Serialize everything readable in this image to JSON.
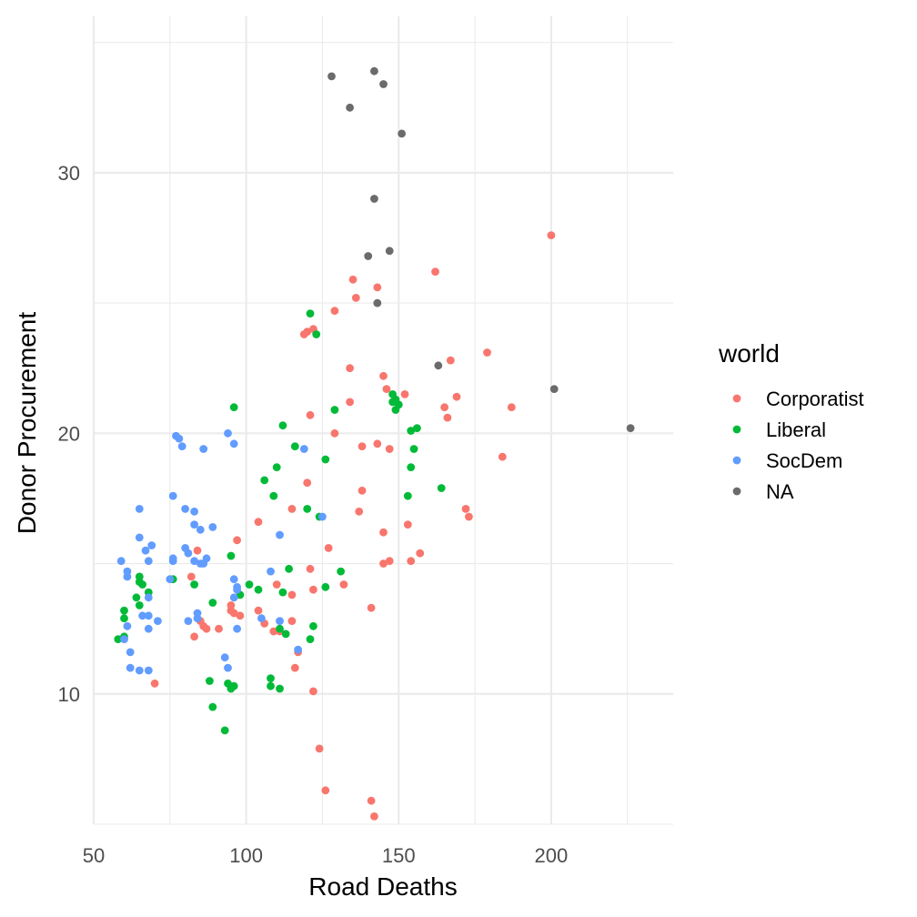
{
  "chart_data": {
    "type": "scatter",
    "xlabel": "Road Deaths",
    "ylabel": "Donor Procurement",
    "xlim": [
      50,
      240
    ],
    "ylim": [
      5,
      36
    ],
    "x_ticks": [
      50,
      100,
      150,
      200
    ],
    "y_ticks": [
      10,
      20,
      30
    ],
    "grid": true,
    "legend": {
      "title": "world",
      "position": "right"
    },
    "series": [
      {
        "name": "Corporatist",
        "color": "#F8766D",
        "points": [
          [
            200,
            27.6
          ],
          [
            162,
            26.2
          ],
          [
            135,
            25.9
          ],
          [
            143,
            25.6
          ],
          [
            136,
            25.2
          ],
          [
            129,
            24.7
          ],
          [
            122,
            24
          ],
          [
            120,
            23.9
          ],
          [
            119,
            23.8
          ],
          [
            179,
            23.1
          ],
          [
            167,
            22.8
          ],
          [
            134,
            22.5
          ],
          [
            145,
            22.2
          ],
          [
            146,
            21.7
          ],
          [
            152,
            21.5
          ],
          [
            169,
            21.4
          ],
          [
            134,
            21.2
          ],
          [
            187,
            21
          ],
          [
            165,
            21
          ],
          [
            166,
            20.6
          ],
          [
            121,
            20.7
          ],
          [
            129,
            20
          ],
          [
            143,
            19.6
          ],
          [
            138,
            19.5
          ],
          [
            147,
            19.4
          ],
          [
            184,
            19.1
          ],
          [
            120,
            18.1
          ],
          [
            138,
            17.8
          ],
          [
            115,
            17.1
          ],
          [
            172,
            17.1
          ],
          [
            137,
            17
          ],
          [
            173,
            16.8
          ],
          [
            104,
            16.6
          ],
          [
            153,
            16.5
          ],
          [
            145,
            16.2
          ],
          [
            97,
            15.9
          ],
          [
            127,
            15.6
          ],
          [
            84,
            15.5
          ],
          [
            157,
            15.4
          ],
          [
            154,
            15.1
          ],
          [
            147,
            15.1
          ],
          [
            145,
            15
          ],
          [
            121,
            14.8
          ],
          [
            82,
            14.5
          ],
          [
            110,
            14.2
          ],
          [
            132,
            14.2
          ],
          [
            122,
            14
          ],
          [
            115,
            13.8
          ],
          [
            95,
            13.4
          ],
          [
            141,
            13.3
          ],
          [
            104,
            13.2
          ],
          [
            95,
            13.2
          ],
          [
            96,
            13.1
          ],
          [
            98,
            13
          ],
          [
            85,
            12.8
          ],
          [
            115,
            12.8
          ],
          [
            106,
            12.7
          ],
          [
            86,
            12.6
          ],
          [
            87,
            12.5
          ],
          [
            91,
            12.5
          ],
          [
            109,
            12.4
          ],
          [
            111,
            12.4
          ],
          [
            83,
            12.2
          ],
          [
            117,
            11.6
          ],
          [
            116,
            11
          ],
          [
            70,
            10.4
          ],
          [
            122,
            10.1
          ],
          [
            124,
            7.9
          ],
          [
            126,
            6.3
          ],
          [
            141,
            5.9
          ],
          [
            142,
            5.3
          ]
        ]
      },
      {
        "name": "Liberal",
        "color": "#00BA38",
        "points": [
          [
            121,
            24.6
          ],
          [
            123,
            23.8
          ],
          [
            148,
            21.5
          ],
          [
            149,
            21.3
          ],
          [
            148,
            21.2
          ],
          [
            150,
            21.1
          ],
          [
            96,
            21
          ],
          [
            129,
            20.9
          ],
          [
            149,
            20.9
          ],
          [
            112,
            20.3
          ],
          [
            156,
            20.2
          ],
          [
            154,
            20.1
          ],
          [
            116,
            19.5
          ],
          [
            155,
            19.4
          ],
          [
            126,
            19
          ],
          [
            110,
            18.7
          ],
          [
            154,
            18.7
          ],
          [
            106,
            18.2
          ],
          [
            164,
            17.9
          ],
          [
            109,
            17.6
          ],
          [
            153,
            17.6
          ],
          [
            120,
            17.1
          ],
          [
            124,
            16.8
          ],
          [
            95,
            15.3
          ],
          [
            114,
            14.8
          ],
          [
            131,
            14.7
          ],
          [
            65,
            14.5
          ],
          [
            76,
            14.4
          ],
          [
            65,
            14.3
          ],
          [
            66,
            14.2
          ],
          [
            83,
            14.2
          ],
          [
            101,
            14.2
          ],
          [
            104,
            14
          ],
          [
            126,
            14.1
          ],
          [
            112,
            13.9
          ],
          [
            68,
            13.9
          ],
          [
            98,
            13.8
          ],
          [
            64,
            13.7
          ],
          [
            65,
            13.4
          ],
          [
            89,
            13.5
          ],
          [
            60,
            13.2
          ],
          [
            60,
            12.9
          ],
          [
            122,
            12.6
          ],
          [
            111,
            12.5
          ],
          [
            113,
            12.3
          ],
          [
            60,
            12.2
          ],
          [
            58,
            12.1
          ],
          [
            121,
            12.1
          ],
          [
            108,
            10.6
          ],
          [
            88,
            10.5
          ],
          [
            94,
            10.4
          ],
          [
            108,
            10.3
          ],
          [
            96,
            10.3
          ],
          [
            95,
            10.2
          ],
          [
            111,
            10.2
          ],
          [
            89,
            9.5
          ],
          [
            93,
            8.6
          ]
        ]
      },
      {
        "name": "SocDem",
        "color": "#619CFF",
        "points": [
          [
            77,
            19.9
          ],
          [
            78,
            19.8
          ],
          [
            94,
            20
          ],
          [
            79,
            19.5
          ],
          [
            96,
            19.6
          ],
          [
            86,
            19.4
          ],
          [
            119,
            19.4
          ],
          [
            65,
            17.1
          ],
          [
            76,
            17.6
          ],
          [
            80,
            17.1
          ],
          [
            83,
            17
          ],
          [
            125,
            16.8
          ],
          [
            83,
            16.5
          ],
          [
            89,
            16.4
          ],
          [
            85,
            16.3
          ],
          [
            111,
            16.1
          ],
          [
            65,
            16
          ],
          [
            69,
            15.7
          ],
          [
            67,
            15.5
          ],
          [
            80,
            15.6
          ],
          [
            81,
            15.4
          ],
          [
            59,
            15.1
          ],
          [
            76,
            15.1
          ],
          [
            83,
            15.1
          ],
          [
            87,
            15.2
          ],
          [
            76,
            15.2
          ],
          [
            68,
            15.1
          ],
          [
            85,
            15
          ],
          [
            86,
            15
          ],
          [
            61,
            14.7
          ],
          [
            108,
            14.7
          ],
          [
            61,
            14.5
          ],
          [
            75,
            14.4
          ],
          [
            96,
            14.4
          ],
          [
            97,
            14.1
          ],
          [
            97,
            14
          ],
          [
            68,
            13.7
          ],
          [
            96,
            13.7
          ],
          [
            84,
            13.1
          ],
          [
            66,
            13
          ],
          [
            68,
            13
          ],
          [
            81,
            12.8
          ],
          [
            105,
            12.9
          ],
          [
            111,
            12.8
          ],
          [
            71,
            12.8
          ],
          [
            84,
            12.9
          ],
          [
            97,
            12.5
          ],
          [
            61,
            12.6
          ],
          [
            68,
            12.5
          ],
          [
            60,
            12.1
          ],
          [
            117,
            11.7
          ],
          [
            62,
            11.6
          ],
          [
            93,
            11.4
          ],
          [
            94,
            11
          ],
          [
            62,
            11
          ],
          [
            65,
            10.9
          ],
          [
            68,
            10.9
          ]
        ]
      },
      {
        "name": "NA",
        "color": "#6b6b6b",
        "points": [
          [
            142,
            33.9
          ],
          [
            128,
            33.7
          ],
          [
            145,
            33.4
          ],
          [
            134,
            32.5
          ],
          [
            151,
            31.5
          ],
          [
            142,
            29
          ],
          [
            147,
            27
          ],
          [
            140,
            26.8
          ],
          [
            143,
            25
          ],
          [
            163,
            22.6
          ],
          [
            201,
            21.7
          ],
          [
            226,
            20.2
          ]
        ]
      }
    ]
  }
}
